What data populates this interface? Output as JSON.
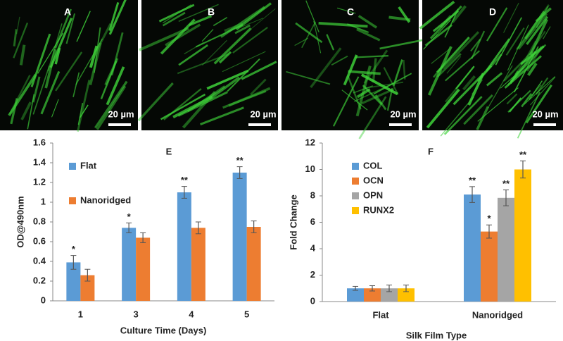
{
  "panels": [
    {
      "label": "A",
      "scale": "20 µm"
    },
    {
      "label": "B",
      "scale": "20 µm"
    },
    {
      "label": "C",
      "scale": "20 µm"
    },
    {
      "label": "D",
      "scale": "20 µm"
    }
  ],
  "chart_data": [
    {
      "type": "bar",
      "title": "E",
      "y_label": "OD@490nm",
      "x_label": "Culture Time (Days)",
      "categories": [
        "1",
        "3",
        "4",
        "5"
      ],
      "series": [
        {
          "name": "Flat",
          "color": "#5b9bd5",
          "values": [
            0.39,
            0.74,
            1.1,
            1.3
          ],
          "errors": [
            0.07,
            0.05,
            0.06,
            0.06
          ],
          "significance": [
            "*",
            "*",
            "**",
            "**"
          ]
        },
        {
          "name": "Nanoridged",
          "color": "#ed7d31",
          "values": [
            0.26,
            0.64,
            0.74,
            0.75
          ],
          "errors": [
            0.06,
            0.05,
            0.06,
            0.06
          ]
        }
      ],
      "ylim": [
        0,
        1.6
      ],
      "yticks": [
        0,
        0.2,
        0.4,
        0.6,
        0.8,
        1,
        1.2,
        1.4,
        1.6
      ],
      "grid": false,
      "legend": "upper left"
    },
    {
      "type": "bar",
      "title": "F",
      "y_label": "Fold Change",
      "x_label": "Silk Film Type",
      "categories": [
        "Flat",
        "Nanoridged"
      ],
      "series": [
        {
          "name": "COL",
          "color": "#5b9bd5",
          "values": [
            1,
            8.1
          ],
          "errors": [
            0.15,
            0.6
          ],
          "significance": [
            null,
            "**"
          ]
        },
        {
          "name": "OCN",
          "color": "#ed7d31",
          "values": [
            1,
            5.3
          ],
          "errors": [
            0.2,
            0.5
          ],
          "significance": [
            null,
            "*"
          ]
        },
        {
          "name": "OPN",
          "color": "#a5a5a5",
          "values": [
            1,
            7.85
          ],
          "errors": [
            0.25,
            0.6
          ],
          "significance": [
            null,
            "**"
          ]
        },
        {
          "name": "RUNX2",
          "color": "#ffc000",
          "values": [
            1,
            10
          ],
          "errors": [
            0.25,
            0.65
          ],
          "significance": [
            null,
            "**"
          ]
        }
      ],
      "ylim": [
        0,
        12
      ],
      "yticks": [
        0,
        2,
        4,
        6,
        8,
        10,
        12
      ],
      "grid": false,
      "legend": "upper left"
    }
  ]
}
